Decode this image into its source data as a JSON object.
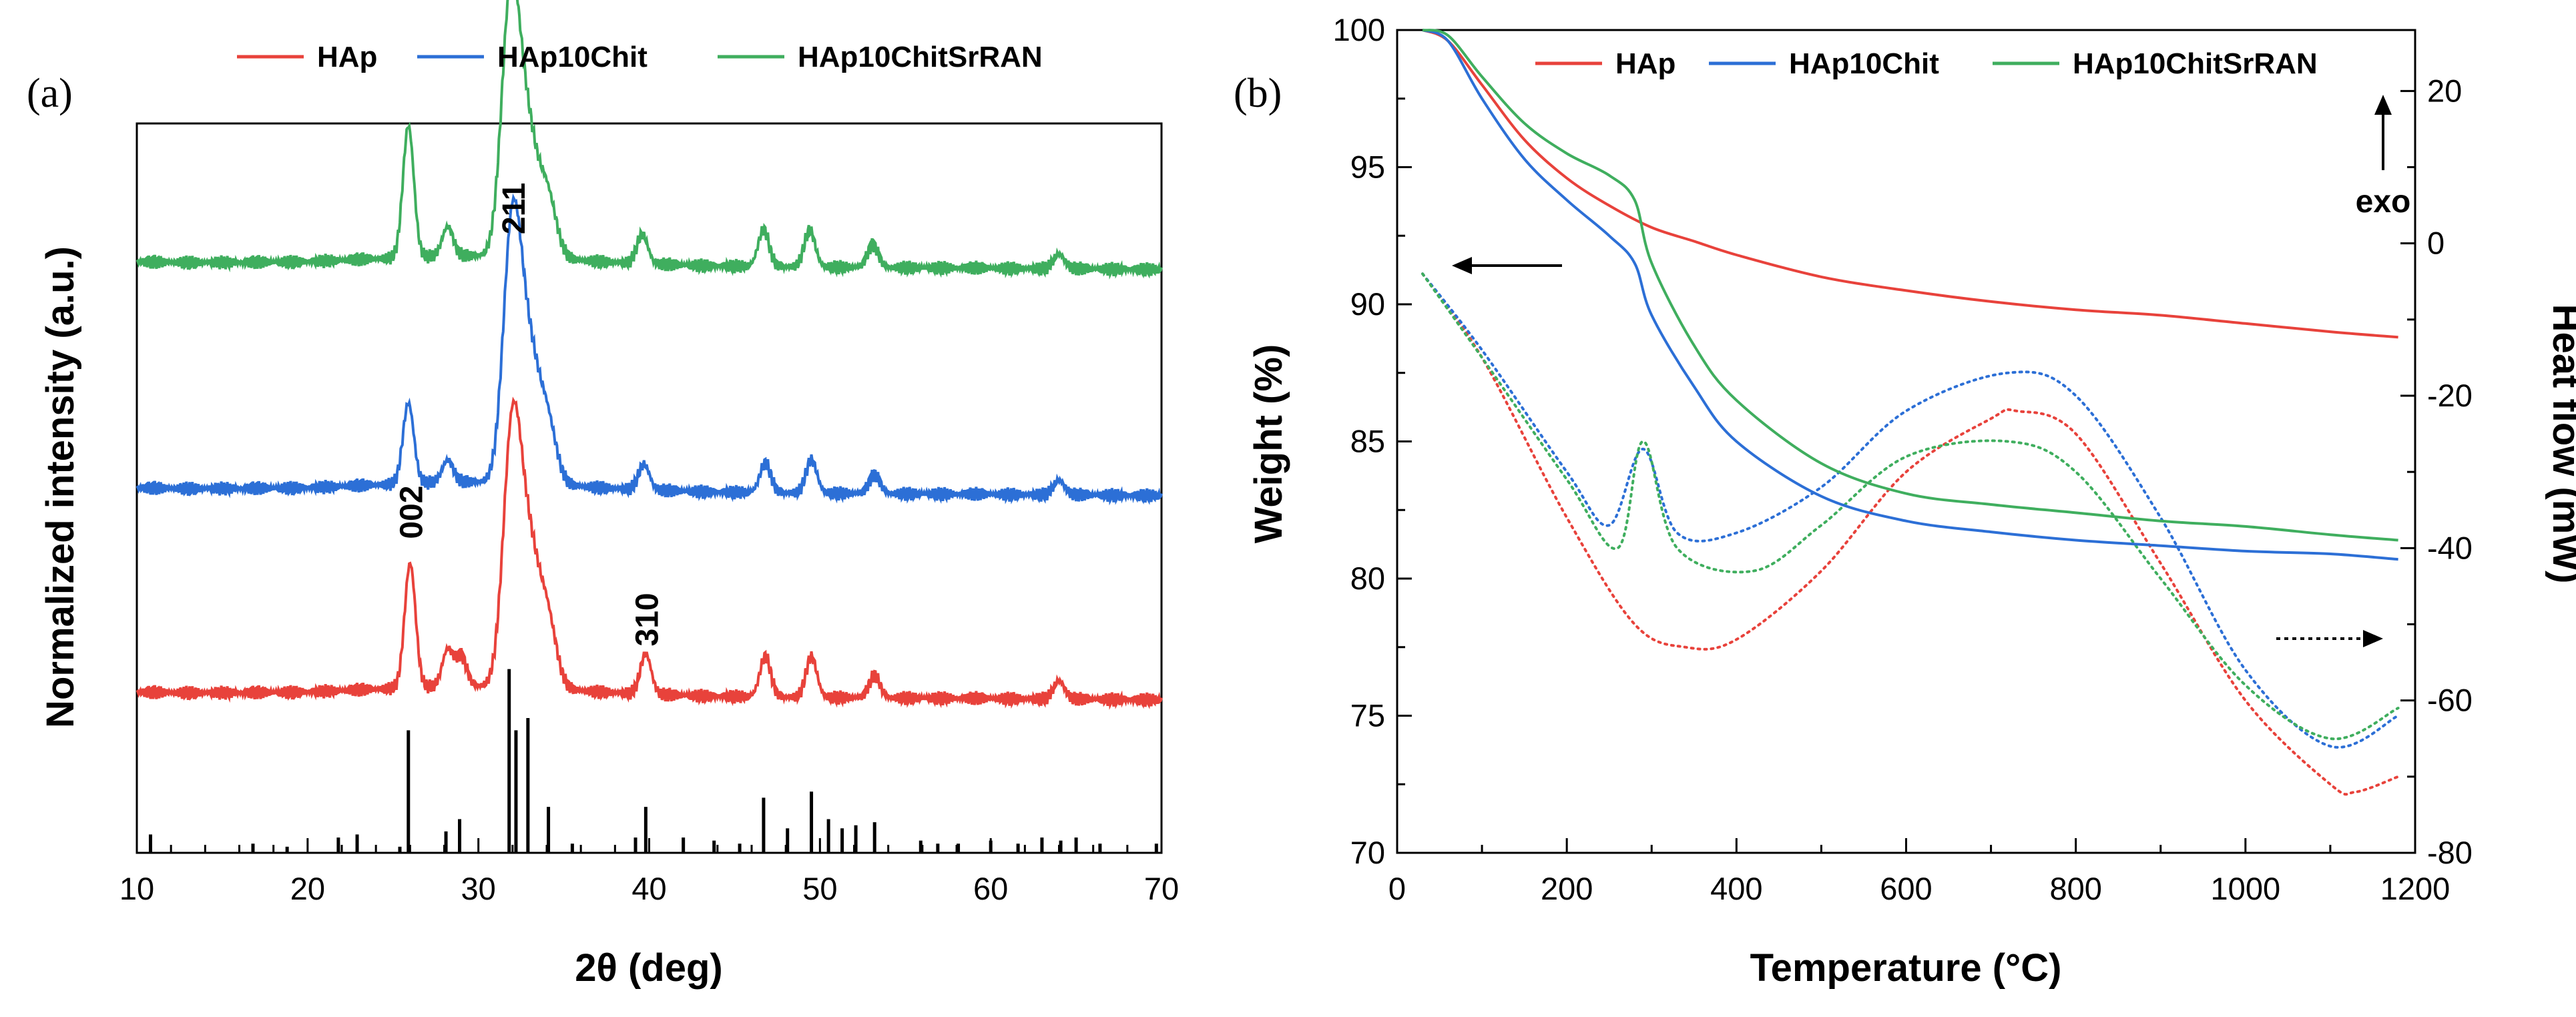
{
  "chart_data": [
    {
      "panel": "(a)",
      "type": "line",
      "xlabel": "2θ (deg)",
      "ylabel": "Normalized intensity (a.u.)",
      "xlim": [
        10,
        70
      ],
      "xticks": [
        10,
        20,
        30,
        40,
        50,
        60,
        70
      ],
      "legend": [
        "HAp",
        "HAp10Chit",
        "HAp10ChitSrRAN"
      ],
      "legend_position": "top",
      "colors": {
        "HAp": "#e8423b",
        "HAp10Chit": "#2c6fd6",
        "HAp10ChitSrRAN": "#3fae5e",
        "reference": "#000000"
      },
      "series": [
        {
          "name": "HAp",
          "baseline": 0.22,
          "peaks": [
            [
              26.0,
              0.17
            ],
            [
              28.2,
              0.05
            ],
            [
              29.0,
              0.04
            ],
            [
              32.0,
              0.36
            ],
            [
              33.0,
              0.16
            ],
            [
              34.0,
              0.1
            ],
            [
              39.8,
              0.055
            ],
            [
              46.8,
              0.055
            ],
            [
              49.5,
              0.055
            ],
            [
              53.2,
              0.03
            ],
            [
              64.0,
              0.025
            ]
          ]
        },
        {
          "name": "HAp10Chit",
          "baseline": 0.5,
          "peaks": [
            [
              25.9,
              0.11
            ],
            [
              28.2,
              0.03
            ],
            [
              32.0,
              0.36
            ],
            [
              33.0,
              0.15
            ],
            [
              34.0,
              0.09
            ],
            [
              39.7,
              0.035
            ],
            [
              46.8,
              0.04
            ],
            [
              49.5,
              0.045
            ],
            [
              53.2,
              0.025
            ],
            [
              64.0,
              0.02
            ]
          ]
        },
        {
          "name": "HAp10ChitSrRAN",
          "baseline": 0.81,
          "peaks": [
            [
              25.9,
              0.18
            ],
            [
              28.2,
              0.04
            ],
            [
              31.9,
              0.36
            ],
            [
              32.9,
              0.15
            ],
            [
              34.0,
              0.09
            ],
            [
              39.6,
              0.04
            ],
            [
              46.7,
              0.05
            ],
            [
              49.4,
              0.05
            ],
            [
              53.1,
              0.03
            ],
            [
              64.0,
              0.02
            ]
          ]
        }
      ],
      "reference_lines": [
        [
          10.8,
          0.06
        ],
        [
          16.8,
          0.03
        ],
        [
          18.8,
          0.02
        ],
        [
          21.8,
          0.05
        ],
        [
          22.9,
          0.06
        ],
        [
          25.4,
          0.02
        ],
        [
          25.9,
          0.4
        ],
        [
          28.1,
          0.07
        ],
        [
          28.9,
          0.11
        ],
        [
          31.8,
          0.6
        ],
        [
          32.2,
          0.4
        ],
        [
          32.9,
          0.44
        ],
        [
          34.1,
          0.15
        ],
        [
          35.5,
          0.03
        ],
        [
          39.2,
          0.05
        ],
        [
          39.8,
          0.15
        ],
        [
          42.0,
          0.05
        ],
        [
          43.8,
          0.04
        ],
        [
          45.3,
          0.03
        ],
        [
          46.7,
          0.18
        ],
        [
          48.1,
          0.08
        ],
        [
          49.5,
          0.2
        ],
        [
          50.5,
          0.11
        ],
        [
          51.3,
          0.08
        ],
        [
          52.1,
          0.09
        ],
        [
          53.2,
          0.1
        ],
        [
          55.9,
          0.04
        ],
        [
          56.9,
          0.03
        ],
        [
          58.1,
          0.03
        ],
        [
          60.0,
          0.04
        ],
        [
          61.6,
          0.03
        ],
        [
          63.0,
          0.05
        ],
        [
          64.1,
          0.04
        ],
        [
          65.0,
          0.05
        ],
        [
          66.4,
          0.03
        ],
        [
          69.7,
          0.03
        ]
      ],
      "annotations": [
        {
          "text": "002",
          "x": 26.0
        },
        {
          "text": "211",
          "x": 32.0
        },
        {
          "text": "310",
          "x": 39.8
        }
      ]
    },
    {
      "panel": "(b)",
      "type": "line",
      "xlabel": "Temperature (°C)",
      "ylabel": "Weight (%)",
      "y2label": "Heat flow (mW)",
      "xlim": [
        0,
        1200
      ],
      "ylim": [
        70,
        100
      ],
      "y2lim": [
        -80,
        28
      ],
      "xticks": [
        0,
        200,
        400,
        600,
        800,
        1000,
        1200
      ],
      "yticks": [
        70,
        75,
        80,
        85,
        90,
        95,
        100
      ],
      "y2ticks": [
        -80,
        -60,
        -40,
        -20,
        0,
        20
      ],
      "legend": [
        "HAp",
        "HAp10Chit",
        "HAp10ChitSrRAN"
      ],
      "legend_position": "top",
      "exo_label": "exo",
      "tga_series": [
        {
          "name": "HAp",
          "x": [
            30,
            60,
            100,
            150,
            200,
            250,
            300,
            350,
            400,
            500,
            600,
            700,
            800,
            900,
            1000,
            1100,
            1180
          ],
          "y": [
            100,
            99.6,
            98,
            96,
            94.6,
            93.6,
            92.8,
            92.3,
            91.8,
            91,
            90.5,
            90.1,
            89.8,
            89.6,
            89.3,
            89.0,
            88.8
          ]
        },
        {
          "name": "HAp10Chit",
          "x": [
            30,
            60,
            100,
            150,
            200,
            250,
            280,
            300,
            350,
            400,
            500,
            600,
            700,
            800,
            900,
            1000,
            1100,
            1180
          ],
          "y": [
            100,
            99.6,
            97.5,
            95.3,
            93.8,
            92.5,
            91.5,
            89.6,
            87,
            85,
            83,
            82.1,
            81.7,
            81.4,
            81.2,
            81.0,
            80.9,
            80.7
          ]
        },
        {
          "name": "HAp10ChitSrRAN",
          "x": [
            30,
            60,
            100,
            150,
            200,
            250,
            280,
            300,
            350,
            400,
            500,
            600,
            700,
            800,
            900,
            1000,
            1100,
            1180
          ],
          "y": [
            100,
            99.8,
            98.3,
            96.6,
            95.5,
            94.7,
            93.8,
            91.5,
            88.5,
            86.5,
            84.2,
            83.1,
            82.7,
            82.4,
            82.1,
            81.9,
            81.6,
            81.4
          ]
        }
      ],
      "dsc_series": [
        {
          "name": "HAp",
          "x": [
            30,
            100,
            200,
            280,
            340,
            400,
            500,
            600,
            700,
            730,
            800,
            900,
            1000,
            1100,
            1130,
            1180
          ],
          "y": [
            -4,
            -15,
            -36,
            -50,
            -53,
            -52,
            -43,
            -30,
            -23,
            -22,
            -25,
            -42,
            -60,
            -71,
            -72,
            -70
          ]
        },
        {
          "name": "HAp10Chit",
          "x": [
            30,
            100,
            200,
            250,
            290,
            330,
            400,
            500,
            600,
            720,
            800,
            900,
            1000,
            1100,
            1180
          ],
          "y": [
            -4,
            -14,
            -30,
            -37,
            -27,
            -38,
            -38,
            -32,
            -22,
            -17,
            -20,
            -36,
            -56,
            -66,
            -62
          ]
        },
        {
          "name": "HAp10ChitSrRAN",
          "x": [
            30,
            100,
            200,
            260,
            290,
            330,
            420,
            500,
            600,
            720,
            800,
            900,
            1000,
            1100,
            1180
          ],
          "y": [
            -4,
            -15,
            -31,
            -40,
            -26,
            -40,
            -43,
            -37,
            -28,
            -26,
            -30,
            -44,
            -58,
            -65,
            -61
          ]
        }
      ]
    }
  ],
  "legend_a": {
    "hap": "HAp",
    "chit": "HAp10Chit",
    "sr": "HAp10ChitSrRAN"
  },
  "legend_b": {
    "hap": "HAp",
    "chit": "HAp10Chit",
    "sr": "HAp10ChitSrRAN"
  }
}
